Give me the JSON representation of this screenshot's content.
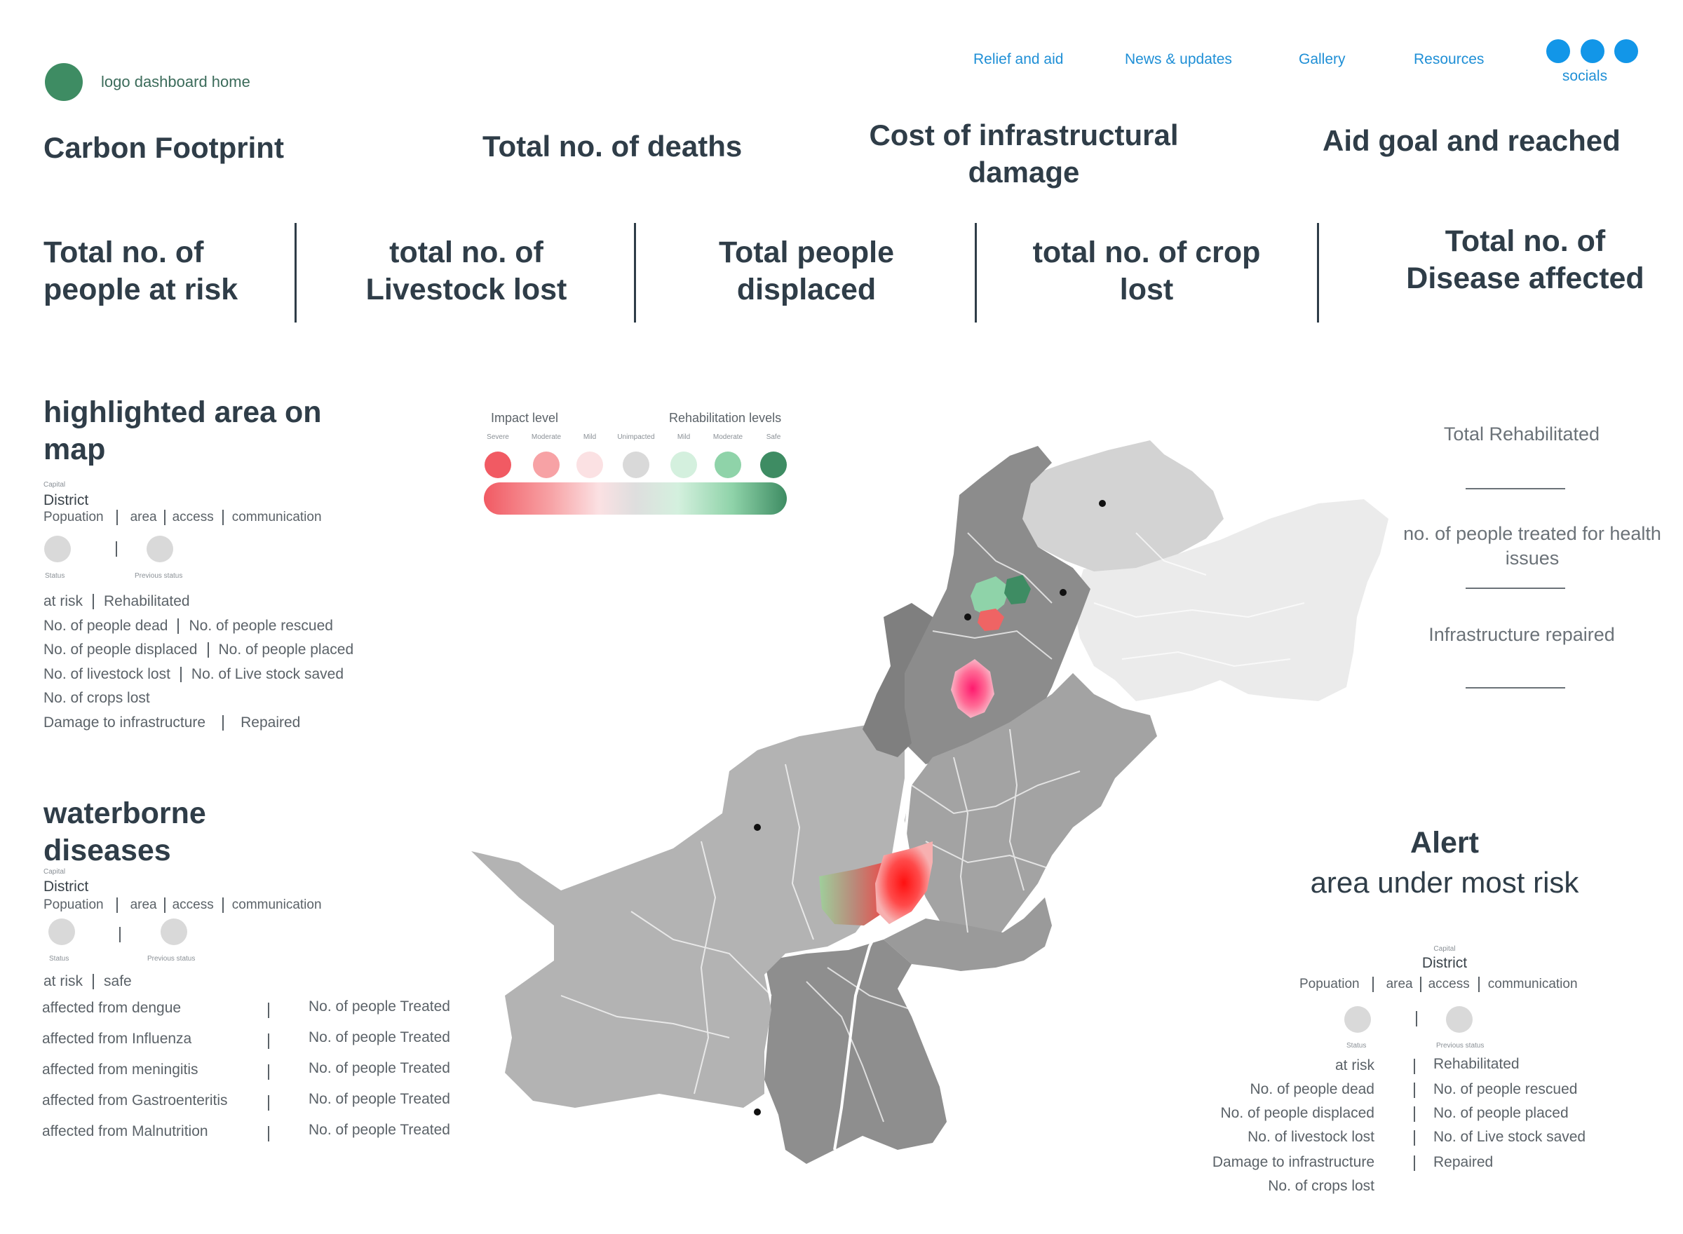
{
  "header": {
    "logo_text": "logo dashboard home",
    "nav": [
      "Relief and aid",
      "News & updates",
      "Gallery",
      "Resources"
    ],
    "socials_label": "socials"
  },
  "kpi_top": [
    "Carbon Footprint",
    "Total no. of deaths",
    "Cost of infrastructural damage",
    "Aid goal and reached"
  ],
  "kpi_mid": [
    "Total no. of people at risk",
    "total no. of Livestock lost",
    "Total people displaced",
    "total no. of crop lost",
    "Total no. of Disease affected"
  ],
  "highlight": {
    "title": "highlighted area on map",
    "capital_label": "Capital",
    "district_label": "District",
    "meta": [
      "Popuation",
      "area",
      "access",
      "communication"
    ],
    "status_label": "Status",
    "previous_status_label": "Previous status",
    "rows": [
      [
        "at risk",
        "Rehabilitated"
      ],
      [
        "No. of people dead",
        "No. of people rescued"
      ],
      [
        "No. of people displaced",
        "No. of people placed"
      ],
      [
        "No. of livestock lost",
        "No. of Live stock saved"
      ],
      [
        "No. of crops lost",
        ""
      ],
      [
        "Damage to infrastructure",
        "Repaired"
      ]
    ]
  },
  "waterborne": {
    "title": "waterborne diseases",
    "capital_label": "Capital",
    "district_label": "District",
    "meta": [
      "Popuation",
      "area",
      "access",
      "communication"
    ],
    "status_label": "Status",
    "previous_status_label": "Previous status",
    "state": [
      "at risk",
      "safe"
    ],
    "rows": [
      [
        "affected from dengue",
        "No. of people Treated"
      ],
      [
        "affected from Influenza",
        "No. of people Treated"
      ],
      [
        "affected from meningitis",
        "No. of people Treated"
      ],
      [
        "affected from Gastroenteritis",
        "No. of people Treated"
      ],
      [
        "affected from Malnutrition",
        "No. of people Treated"
      ]
    ]
  },
  "legend": {
    "impact_label": "Impact level",
    "rehab_label": "Rehabilitation levels",
    "items": [
      {
        "label": "Severe",
        "color": "#f15a63"
      },
      {
        "label": "Moderate",
        "color": "#f7a2a5"
      },
      {
        "label": "Mild",
        "color": "#fbe1e3"
      },
      {
        "label": "Unimpacted",
        "color": "#d9d9d9"
      },
      {
        "label": "Mild",
        "color": "#d4f0de"
      },
      {
        "label": "Moderate",
        "color": "#8fd3a9"
      },
      {
        "label": "Safe",
        "color": "#3e8c63"
      }
    ]
  },
  "right_stats": {
    "total_rehabilitated": "Total Rehabilitated",
    "treated_health": "no. of people treated for health issues",
    "infrastructure_repaired": "Infrastructure repaired"
  },
  "alert": {
    "title": "Alert",
    "subtitle": "area under most risk",
    "capital_label": "Capital",
    "district_label": "District",
    "meta": [
      "Popuation",
      "area",
      "access",
      "communication"
    ],
    "status_label": "Status",
    "previous_status_label": "Previous status",
    "left": [
      "at risk",
      "No. of people dead",
      "No. of people displaced",
      "No. of livestock lost",
      "Damage to infrastructure",
      "No. of crops lost"
    ],
    "right": [
      "Rehabilitated",
      "No. of people rescued",
      "No. of people placed",
      "No. of Live stock saved",
      "Repaired"
    ]
  }
}
